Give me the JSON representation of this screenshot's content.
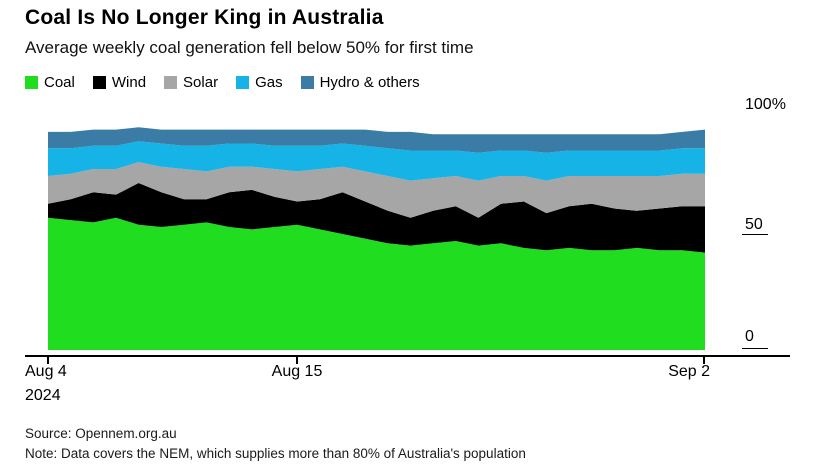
{
  "footer": {
    "source": "Source: Opennem.org.au",
    "note": "Note: Data covers the NEM, which supplies more than 80% of Australia's population"
  },
  "chart_data": {
    "type": "area",
    "stacked": true,
    "unit": "%",
    "title": "Coal Is No Longer King in Australia",
    "subtitle": "Average weekly coal generation fell below 50% for first time",
    "legend_position": "top",
    "grid": false,
    "ylim": [
      0,
      100
    ],
    "x": [
      "Aug 4",
      "Aug 5",
      "Aug 6",
      "Aug 7",
      "Aug 8",
      "Aug 9",
      "Aug 10",
      "Aug 11",
      "Aug 12",
      "Aug 13",
      "Aug 14",
      "Aug 15",
      "Aug 16",
      "Aug 17",
      "Aug 18",
      "Aug 19",
      "Aug 20",
      "Aug 21",
      "Aug 22",
      "Aug 23",
      "Aug 24",
      "Aug 25",
      "Aug 26",
      "Aug 27",
      "Aug 28",
      "Aug 29",
      "Aug 30",
      "Aug 31",
      "Sep 1",
      "Sep 2"
    ],
    "series": [
      {
        "name": "Coal",
        "color": "#20dd20",
        "values": [
          57,
          56,
          55,
          57,
          54,
          53,
          54,
          55,
          53,
          52,
          53,
          54,
          52,
          50,
          48,
          46,
          45,
          46,
          47,
          45,
          46,
          44,
          43,
          44,
          43,
          43,
          44,
          43,
          43,
          42
        ]
      },
      {
        "name": "Wind",
        "color": "#000000",
        "values": [
          6,
          9,
          13,
          10,
          18,
          15,
          11,
          10,
          15,
          17,
          13,
          10,
          13,
          18,
          16,
          14,
          12,
          14,
          15,
          12,
          17,
          20,
          16,
          18,
          20,
          18,
          16,
          18,
          19,
          20
        ]
      },
      {
        "name": "Solar",
        "color": "#a6a6a6",
        "values": [
          12,
          11,
          10,
          11,
          9,
          11,
          13,
          12,
          11,
          10,
          12,
          13,
          13,
          11,
          13,
          15,
          16,
          14,
          13,
          16,
          12,
          11,
          14,
          13,
          12,
          14,
          15,
          14,
          14,
          14
        ]
      },
      {
        "name": "Gas",
        "color": "#16b3e6",
        "values": [
          12,
          11,
          10,
          10,
          9,
          10,
          10,
          11,
          10,
          10,
          10,
          11,
          10,
          10,
          11,
          12,
          13,
          12,
          11,
          12,
          11,
          11,
          12,
          11,
          11,
          11,
          11,
          11,
          11,
          11
        ]
      },
      {
        "name": "Hydro & others",
        "color": "#3a7ca5",
        "values": [
          7,
          7,
          7,
          7,
          6,
          6,
          7,
          7,
          6,
          6,
          7,
          7,
          7,
          6,
          7,
          7,
          8,
          7,
          7,
          8,
          7,
          7,
          8,
          7,
          7,
          7,
          7,
          7,
          7,
          8
        ]
      }
    ],
    "y_ticks": [
      {
        "value": 100,
        "label": "100%"
      },
      {
        "value": 50,
        "label": "50"
      },
      {
        "value": 0,
        "label": "0"
      }
    ],
    "x_ticks": [
      {
        "label": "Aug 4",
        "sublabel": "2024",
        "position": 0
      },
      {
        "label": "Aug 15",
        "position": 0.379
      },
      {
        "label": "Sep 2",
        "position": 1
      }
    ]
  }
}
